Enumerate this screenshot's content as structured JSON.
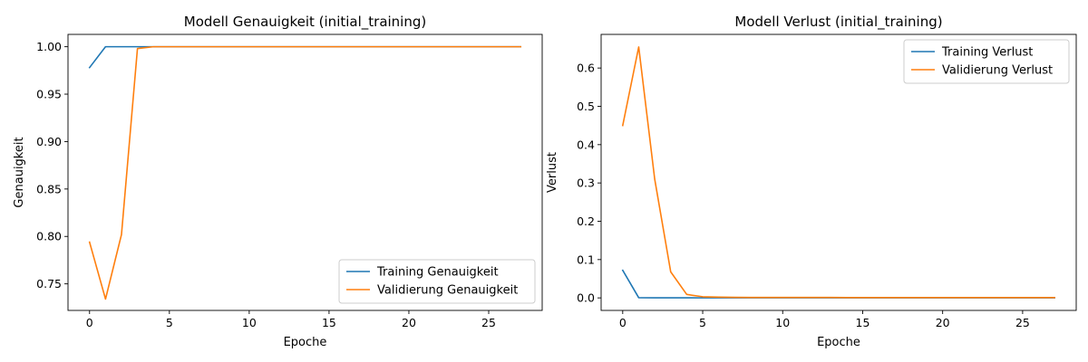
{
  "chart_data": [
    {
      "type": "line",
      "title": "Modell Genauigkeit (initial_training)",
      "xlabel": "Epoche",
      "ylabel": "Genauigkeit",
      "xlim": [
        -1.35,
        28.35
      ],
      "ylim": [
        0.722,
        1.013
      ],
      "xticks": [
        0,
        5,
        10,
        15,
        20,
        25
      ],
      "yticks": [
        0.75,
        0.8,
        0.85,
        0.9,
        0.95,
        1.0
      ],
      "ytick_labels": [
        "0.75",
        "0.80",
        "0.85",
        "0.90",
        "0.95",
        "1.00"
      ],
      "legend_position": "lower-right",
      "grid": false,
      "x": [
        0,
        1,
        2,
        3,
        4,
        5,
        6,
        7,
        8,
        9,
        10,
        11,
        12,
        13,
        14,
        15,
        16,
        17,
        18,
        19,
        20,
        21,
        22,
        23,
        24,
        25,
        26,
        27
      ],
      "series": [
        {
          "name": "Training Genauigkeit",
          "color": "#1f77b4",
          "values": [
            0.978,
            1.0,
            1.0,
            1.0,
            1.0,
            1.0,
            1.0,
            1.0,
            1.0,
            1.0,
            1.0,
            1.0,
            1.0,
            1.0,
            1.0,
            1.0,
            1.0,
            1.0,
            1.0,
            1.0,
            1.0,
            1.0,
            1.0,
            1.0,
            1.0,
            1.0,
            1.0,
            1.0
          ]
        },
        {
          "name": "Validierung Genauigkeit",
          "color": "#ff7f0e",
          "values": [
            0.794,
            0.734,
            0.802,
            0.998,
            1.0,
            1.0,
            1.0,
            1.0,
            1.0,
            1.0,
            1.0,
            1.0,
            1.0,
            1.0,
            1.0,
            1.0,
            1.0,
            1.0,
            1.0,
            1.0,
            1.0,
            1.0,
            1.0,
            1.0,
            1.0,
            1.0,
            1.0,
            1.0
          ]
        }
      ]
    },
    {
      "type": "line",
      "title": "Modell Verlust (initial_training)",
      "xlabel": "Epoche",
      "ylabel": "Verlust",
      "xlim": [
        -1.35,
        28.35
      ],
      "ylim": [
        -0.0327,
        0.6878
      ],
      "xticks": [
        0,
        5,
        10,
        15,
        20,
        25
      ],
      "yticks": [
        0.0,
        0.1,
        0.2,
        0.3,
        0.4,
        0.5,
        0.6
      ],
      "ytick_labels": [
        "0.0",
        "0.1",
        "0.2",
        "0.3",
        "0.4",
        "0.5",
        "0.6"
      ],
      "legend_position": "upper-right",
      "grid": false,
      "x": [
        0,
        1,
        2,
        3,
        4,
        5,
        6,
        7,
        8,
        9,
        10,
        11,
        12,
        13,
        14,
        15,
        16,
        17,
        18,
        19,
        20,
        21,
        22,
        23,
        24,
        25,
        26,
        27
      ],
      "series": [
        {
          "name": "Training Verlust",
          "color": "#1f77b4",
          "values": [
            0.072,
            0.0005,
            0.0003,
            0.0002,
            0.0002,
            0.0001,
            0.0001,
            0.0001,
            0.0001,
            0.0001,
            0.0001,
            0.0001,
            0.0001,
            0.0001,
            0.0001,
            0.0001,
            0.0001,
            0.0001,
            0.0001,
            0.0001,
            0.0001,
            0.0001,
            0.0001,
            0.0001,
            0.0001,
            0.0001,
            0.0001,
            0.0001
          ]
        },
        {
          "name": "Validierung Verlust",
          "color": "#ff7f0e",
          "values": [
            0.45,
            0.655,
            0.31,
            0.068,
            0.009,
            0.003,
            0.002,
            0.0015,
            0.001,
            0.001,
            0.001,
            0.001,
            0.001,
            0.001,
            0.0008,
            0.0008,
            0.0008,
            0.0008,
            0.0008,
            0.0008,
            0.0008,
            0.0008,
            0.0008,
            0.0008,
            0.0008,
            0.0008,
            0.0008,
            0.0008
          ]
        }
      ]
    }
  ]
}
